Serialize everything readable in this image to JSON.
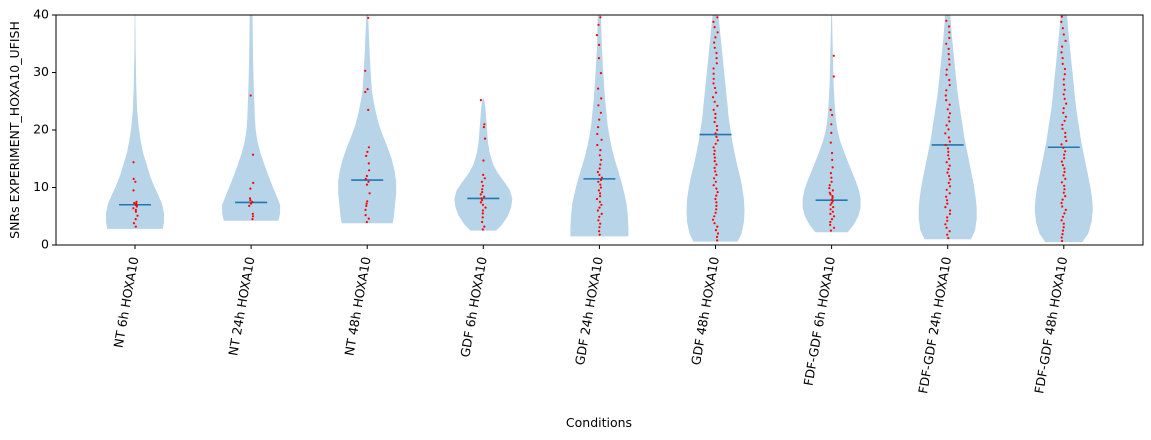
{
  "chart_data": {
    "type": "violin",
    "xlabel": "Conditions",
    "ylabel": "SNRs EXPERIMENT_HOXA10_UFISH",
    "ylim": [
      0,
      40
    ],
    "yticks": [
      0,
      10,
      20,
      30,
      40
    ],
    "grid": false,
    "colors": {
      "violin": "#b8d4e8",
      "median": "#1f77b4",
      "points": "#ff0000",
      "axis": "#000000"
    },
    "categories": [
      "NT 6h HOXA10",
      "NT 24h HOXA10",
      "NT 48h HOXA10",
      "GDF 6h HOXA10",
      "GDF 24h HOXA10",
      "GDF 48h HOXA10",
      "FDF-GDF 6h HOXA10",
      "FDF-GDF 24h HOXA10",
      "FDF-GDF 48h HOXA10"
    ],
    "groups": [
      {
        "label": "NT 6h HOXA10",
        "median": 7.0,
        "range": [
          2.8,
          42
        ],
        "profile": [
          [
            2.8,
            0.48
          ],
          [
            4,
            0.5
          ],
          [
            5.5,
            0.5
          ],
          [
            7,
            0.47
          ],
          [
            8.5,
            0.41
          ],
          [
            10,
            0.34
          ],
          [
            12,
            0.26
          ],
          [
            14,
            0.2
          ],
          [
            16,
            0.14
          ],
          [
            18,
            0.1
          ],
          [
            20,
            0.07
          ],
          [
            22,
            0.05
          ],
          [
            24,
            0.035
          ],
          [
            28,
            0.02
          ],
          [
            34,
            0.01
          ],
          [
            42,
            0.003
          ]
        ],
        "points": [
          3.2,
          3.8,
          4.5,
          5.1,
          5.8,
          6.1,
          6.4,
          6.7,
          6.9,
          7.0,
          7.2,
          7.3,
          7.5,
          9.5,
          11.0,
          11.5,
          14.4
        ]
      },
      {
        "label": "NT 24h HOXA10",
        "median": 7.4,
        "range": [
          4.2,
          45
        ],
        "profile": [
          [
            4.2,
            0.47
          ],
          [
            5.5,
            0.5
          ],
          [
            7,
            0.5
          ],
          [
            8.5,
            0.44
          ],
          [
            10,
            0.38
          ],
          [
            12,
            0.3
          ],
          [
            14,
            0.23
          ],
          [
            16,
            0.16
          ],
          [
            18,
            0.11
          ],
          [
            20,
            0.08
          ],
          [
            22,
            0.065
          ],
          [
            25,
            0.055
          ],
          [
            28,
            0.045
          ],
          [
            32,
            0.035
          ],
          [
            36,
            0.03
          ],
          [
            40,
            0.025
          ],
          [
            45,
            0.02
          ]
        ],
        "points": [
          4.5,
          5.0,
          5.4,
          6.8,
          7.2,
          7.5,
          7.8,
          8.1,
          9.8,
          10.8,
          15.7,
          26.0
        ]
      },
      {
        "label": "NT 48h HOXA10",
        "median": 11.3,
        "range": [
          3.8,
          41
        ],
        "profile": [
          [
            3.8,
            0.44
          ],
          [
            5,
            0.46
          ],
          [
            7,
            0.48
          ],
          [
            9,
            0.5
          ],
          [
            11,
            0.5
          ],
          [
            13,
            0.47
          ],
          [
            15,
            0.42
          ],
          [
            17,
            0.35
          ],
          [
            19,
            0.27
          ],
          [
            21,
            0.2
          ],
          [
            23,
            0.15
          ],
          [
            25,
            0.11
          ],
          [
            27,
            0.08
          ],
          [
            30,
            0.06
          ],
          [
            34,
            0.04
          ],
          [
            38,
            0.025
          ],
          [
            41,
            0.01
          ]
        ],
        "points": [
          4.0,
          4.6,
          5.2,
          6.1,
          6.8,
          7.2,
          7.6,
          9.0,
          10.5,
          11.0,
          11.5,
          12.0,
          13.0,
          14.2,
          15.5,
          16.2,
          17.0,
          23.5,
          26.6,
          27.1,
          30.3,
          39.5
        ]
      },
      {
        "label": "GDF 6h HOXA10",
        "median": 8.1,
        "range": [
          2.5,
          25.5
        ],
        "profile": [
          [
            2.5,
            0.22
          ],
          [
            3.5,
            0.32
          ],
          [
            5,
            0.42
          ],
          [
            6.5,
            0.48
          ],
          [
            8,
            0.5
          ],
          [
            9.5,
            0.46
          ],
          [
            11,
            0.36
          ],
          [
            12.5,
            0.25
          ],
          [
            14,
            0.17
          ],
          [
            16,
            0.11
          ],
          [
            18,
            0.08
          ],
          [
            20,
            0.065
          ],
          [
            22,
            0.05
          ],
          [
            24,
            0.035
          ],
          [
            25.5,
            0.01
          ]
        ],
        "points": [
          2.7,
          3.2,
          4.0,
          4.8,
          5.5,
          6.0,
          6.5,
          7.0,
          7.4,
          7.8,
          8.1,
          8.4,
          8.8,
          9.2,
          9.7,
          10.3,
          11.0,
          11.6,
          12.2,
          14.7,
          18.5,
          20.5,
          21.0,
          25.2
        ]
      },
      {
        "label": "GDF 24h HOXA10",
        "median": 11.5,
        "range": [
          1.5,
          42
        ],
        "profile": [
          [
            1.5,
            0.5
          ],
          [
            3,
            0.5
          ],
          [
            5,
            0.49
          ],
          [
            7,
            0.47
          ],
          [
            9,
            0.43
          ],
          [
            11,
            0.38
          ],
          [
            13,
            0.32
          ],
          [
            15,
            0.26
          ],
          [
            17,
            0.21
          ],
          [
            19,
            0.17
          ],
          [
            21,
            0.14
          ],
          [
            23,
            0.12
          ],
          [
            25,
            0.1
          ],
          [
            28,
            0.08
          ],
          [
            31,
            0.06
          ],
          [
            34,
            0.045
          ],
          [
            37,
            0.035
          ],
          [
            40,
            0.025
          ],
          [
            42,
            0.02
          ]
        ],
        "points": [
          1.8,
          2.4,
          3.1,
          3.7,
          4.3,
          4.9,
          5.4,
          6.0,
          6.5,
          7.0,
          7.5,
          8.0,
          8.5,
          9.0,
          9.5,
          10.0,
          10.5,
          11.0,
          11.3,
          11.7,
          12.2,
          12.7,
          13.3,
          14.0,
          14.8,
          15.6,
          16.5,
          17.4,
          18.3,
          19.3,
          20.5,
          21.8,
          23.0,
          24.3,
          25.5,
          27.2,
          29.9,
          32.5,
          34.8,
          36.5,
          38.3,
          39.6
        ]
      },
      {
        "label": "GDF 48h HOXA10",
        "median": 19.2,
        "range": [
          0.6,
          42
        ],
        "profile": [
          [
            0.6,
            0.38
          ],
          [
            2,
            0.45
          ],
          [
            4,
            0.49
          ],
          [
            6,
            0.5
          ],
          [
            8,
            0.49
          ],
          [
            10,
            0.46
          ],
          [
            12,
            0.42
          ],
          [
            14,
            0.37
          ],
          [
            16,
            0.33
          ],
          [
            18,
            0.29
          ],
          [
            20,
            0.26
          ],
          [
            22,
            0.23
          ],
          [
            24,
            0.21
          ],
          [
            26,
            0.19
          ],
          [
            28,
            0.17
          ],
          [
            30,
            0.15
          ],
          [
            32,
            0.13
          ],
          [
            34,
            0.11
          ],
          [
            36,
            0.09
          ],
          [
            38,
            0.07
          ],
          [
            40,
            0.05
          ],
          [
            42,
            0.03
          ]
        ],
        "points": [
          0.8,
          1.4,
          2.0,
          2.6,
          3.2,
          3.8,
          4.4,
          5.0,
          5.6,
          6.2,
          6.8,
          7.4,
          8.0,
          8.6,
          9.2,
          9.8,
          10.4,
          11.0,
          11.6,
          12.2,
          12.8,
          13.4,
          14.0,
          14.6,
          15.2,
          15.8,
          16.4,
          17.0,
          17.6,
          18.2,
          18.8,
          19.4,
          20.0,
          20.7,
          21.4,
          22.1,
          22.8,
          23.5,
          24.2,
          24.9,
          25.7,
          26.5,
          27.3,
          28.1,
          28.9,
          29.8,
          30.7,
          31.6,
          32.5,
          33.4,
          34.3,
          35.2,
          36.1,
          37.0,
          37.9,
          38.8,
          39.6
        ]
      },
      {
        "label": "FDF-GDF 6h HOXA10",
        "median": 7.8,
        "range": [
          2.2,
          41
        ],
        "profile": [
          [
            2.2,
            0.28
          ],
          [
            3.5,
            0.38
          ],
          [
            5,
            0.46
          ],
          [
            6.5,
            0.5
          ],
          [
            8,
            0.5
          ],
          [
            9.5,
            0.47
          ],
          [
            11,
            0.42
          ],
          [
            12.5,
            0.36
          ],
          [
            14,
            0.3
          ],
          [
            16,
            0.22
          ],
          [
            18,
            0.15
          ],
          [
            20,
            0.1
          ],
          [
            22,
            0.07
          ],
          [
            25,
            0.05
          ],
          [
            28,
            0.035
          ],
          [
            32,
            0.025
          ],
          [
            36,
            0.015
          ],
          [
            41,
            0.005
          ]
        ],
        "points": [
          2.5,
          3.0,
          3.5,
          4.0,
          4.5,
          5.0,
          5.4,
          5.8,
          6.2,
          6.6,
          7.0,
          7.3,
          7.6,
          7.9,
          8.2,
          8.5,
          8.8,
          9.1,
          9.5,
          9.9,
          10.4,
          11.0,
          11.7,
          12.5,
          13.5,
          14.8,
          16.0,
          17.8,
          19.5,
          21.0,
          22.6,
          23.5,
          29.3,
          32.9
        ]
      },
      {
        "label": "FDF-GDF 24h HOXA10",
        "median": 17.4,
        "range": [
          1.0,
          42
        ],
        "profile": [
          [
            1,
            0.4
          ],
          [
            2.5,
            0.47
          ],
          [
            4.5,
            0.5
          ],
          [
            6.5,
            0.5
          ],
          [
            8.5,
            0.48
          ],
          [
            10.5,
            0.45
          ],
          [
            12.5,
            0.41
          ],
          [
            14.5,
            0.37
          ],
          [
            16.5,
            0.33
          ],
          [
            18.5,
            0.29
          ],
          [
            20.5,
            0.26
          ],
          [
            22.5,
            0.23
          ],
          [
            24.5,
            0.2
          ],
          [
            26.5,
            0.17
          ],
          [
            28.5,
            0.15
          ],
          [
            30.5,
            0.13
          ],
          [
            32.5,
            0.11
          ],
          [
            34.5,
            0.09
          ],
          [
            36.5,
            0.07
          ],
          [
            38.5,
            0.055
          ],
          [
            40.5,
            0.04
          ],
          [
            42,
            0.03
          ]
        ],
        "points": [
          1.2,
          1.8,
          2.4,
          3.0,
          3.6,
          4.2,
          4.8,
          5.4,
          6.0,
          6.6,
          7.2,
          7.8,
          8.4,
          9.0,
          9.6,
          10.2,
          10.8,
          11.4,
          12.0,
          12.6,
          13.2,
          13.8,
          14.4,
          15.0,
          15.6,
          16.2,
          16.8,
          17.4,
          18.0,
          18.7,
          19.4,
          20.1,
          20.8,
          21.5,
          22.2,
          22.9,
          23.6,
          24.4,
          25.2,
          26.0,
          26.9,
          27.8,
          28.7,
          29.6,
          30.5,
          31.4,
          32.3,
          33.2,
          34.1,
          35.0,
          36.0,
          37.0,
          38.0,
          39.0
        ]
      },
      {
        "label": "FDF-GDF 48h HOXA10",
        "median": 17.0,
        "range": [
          0.5,
          42
        ],
        "profile": [
          [
            0.5,
            0.32
          ],
          [
            2,
            0.42
          ],
          [
            4,
            0.48
          ],
          [
            6,
            0.5
          ],
          [
            8,
            0.49
          ],
          [
            10,
            0.46
          ],
          [
            12,
            0.42
          ],
          [
            14,
            0.38
          ],
          [
            16,
            0.34
          ],
          [
            18,
            0.3
          ],
          [
            20,
            0.27
          ],
          [
            22,
            0.24
          ],
          [
            24,
            0.21
          ],
          [
            26,
            0.19
          ],
          [
            28,
            0.17
          ],
          [
            30,
            0.15
          ],
          [
            32,
            0.13
          ],
          [
            34,
            0.11
          ],
          [
            36,
            0.09
          ],
          [
            38,
            0.07
          ],
          [
            40,
            0.055
          ],
          [
            42,
            0.04
          ]
        ],
        "points": [
          0.7,
          1.3,
          1.9,
          2.5,
          3.1,
          3.7,
          4.3,
          4.9,
          5.5,
          6.1,
          6.7,
          7.3,
          7.9,
          8.5,
          9.1,
          9.7,
          10.3,
          10.9,
          11.5,
          12.1,
          12.7,
          13.3,
          13.9,
          14.5,
          15.1,
          15.7,
          16.3,
          16.9,
          17.5,
          18.1,
          18.8,
          19.5,
          20.2,
          20.9,
          21.6,
          22.3,
          23.0,
          23.8,
          24.6,
          25.4,
          26.2,
          27.0,
          27.9,
          28.8,
          29.7,
          30.6,
          31.5,
          32.5,
          33.5,
          34.5,
          35.5,
          36.6,
          37.7,
          38.8,
          39.7
        ]
      }
    ]
  }
}
